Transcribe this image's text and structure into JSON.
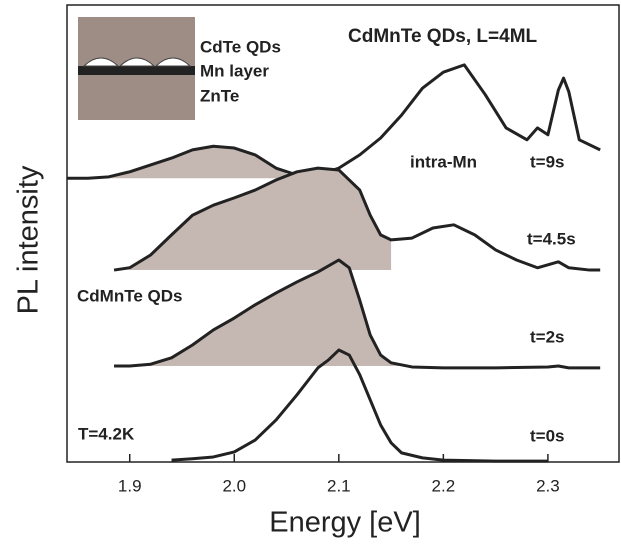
{
  "chart_data": {
    "type": "line",
    "title": "CdMnTe QDs, L=4ML",
    "xlabel": "Energy [eV]",
    "ylabel": "PL intensity",
    "xlim": [
      1.84,
      2.368
    ],
    "ylim": [
      0,
      10
    ],
    "xticks": [
      1.9,
      {
        "value": 2.0,
        "label": "2.0"
      },
      2.1,
      2.2,
      2.3
    ],
    "annotations": [
      "intra-Mn",
      "CdMnTe QDs",
      "T=4.2K",
      "CdTe QDs",
      "Mn layer",
      "ZnTe"
    ],
    "shade_color": "#c5b8b2",
    "series": [
      {
        "name": "t=9s",
        "color": "#222222",
        "shade_x": [
          1.84,
          2.05
        ],
        "x": [
          1.84,
          1.86,
          1.88,
          1.9,
          1.92,
          1.94,
          1.96,
          1.98,
          2.0,
          2.02,
          2.04,
          2.06,
          2.08,
          2.1,
          2.12,
          2.14,
          2.16,
          2.18,
          2.2,
          2.22,
          2.24,
          2.26,
          2.28,
          2.29,
          2.3,
          2.31,
          2.315,
          2.32,
          2.33,
          2.35
        ],
        "values": [
          6.21,
          6.21,
          6.24,
          6.35,
          6.5,
          6.65,
          6.83,
          6.91,
          6.87,
          6.72,
          6.43,
          6.28,
          6.28,
          6.43,
          6.72,
          7.09,
          7.59,
          8.18,
          8.53,
          8.69,
          8.04,
          7.31,
          7.05,
          7.31,
          7.16,
          8.14,
          8.4,
          8.1,
          7.05,
          6.83
        ]
      },
      {
        "name": "t=4.5s",
        "color": "#222222",
        "shade_x": [
          1.9,
          2.15
        ],
        "x": [
          1.885,
          1.9,
          1.92,
          1.94,
          1.96,
          1.98,
          2.0,
          2.02,
          2.04,
          2.06,
          2.08,
          2.1,
          2.12,
          2.13,
          2.14,
          2.15,
          2.17,
          2.19,
          2.21,
          2.23,
          2.25,
          2.27,
          2.29,
          2.31,
          2.32,
          2.34,
          2.35
        ],
        "values": [
          4.2,
          4.25,
          4.53,
          4.97,
          5.4,
          5.62,
          5.78,
          5.95,
          6.17,
          6.35,
          6.43,
          6.39,
          5.95,
          5.4,
          4.97,
          4.86,
          4.9,
          5.12,
          5.19,
          4.97,
          4.64,
          4.42,
          4.25,
          4.38,
          4.25,
          4.2,
          4.2
        ]
      },
      {
        "name": "t=2s",
        "color": "#222222",
        "shade_x": [
          1.9,
          2.165
        ],
        "x": [
          1.885,
          1.9,
          1.92,
          1.94,
          1.96,
          1.98,
          2.0,
          2.02,
          2.04,
          2.06,
          2.08,
          2.1,
          2.11,
          2.12,
          2.13,
          2.14,
          2.15,
          2.17,
          2.2,
          2.25,
          2.3,
          2.31,
          2.32,
          2.35
        ],
        "values": [
          2.1,
          2.1,
          2.14,
          2.28,
          2.56,
          2.89,
          3.15,
          3.44,
          3.7,
          3.94,
          4.16,
          4.42,
          4.25,
          3.54,
          2.78,
          2.34,
          2.17,
          2.08,
          2.06,
          2.06,
          2.08,
          2.1,
          2.06,
          2.06
        ]
      },
      {
        "name": "t=0s",
        "color": "#222222",
        "x": [
          1.94,
          1.96,
          1.98,
          2.0,
          2.02,
          2.04,
          2.06,
          2.08,
          2.09,
          2.1,
          2.11,
          2.12,
          2.13,
          2.14,
          2.15,
          2.16,
          2.18,
          2.2,
          2.25,
          2.3
        ],
        "values": [
          0.04,
          0.07,
          0.11,
          0.22,
          0.48,
          0.92,
          1.47,
          2.06,
          2.23,
          2.45,
          2.34,
          1.91,
          1.36,
          0.81,
          0.42,
          0.2,
          0.09,
          0.04,
          0.02,
          0.02
        ]
      }
    ]
  }
}
